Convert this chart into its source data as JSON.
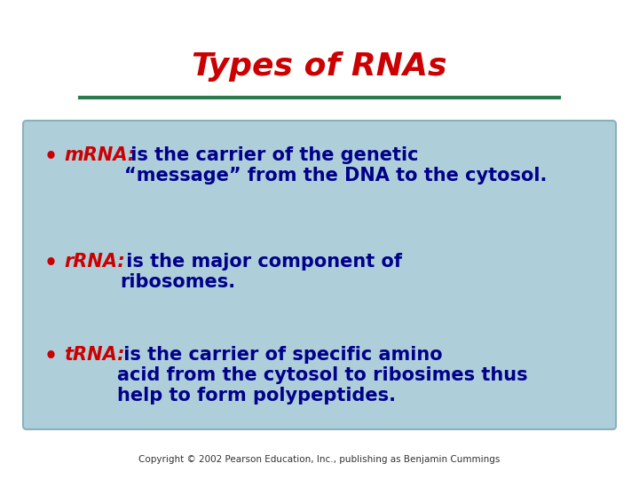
{
  "title": "Types of RNAs",
  "title_color": "#cc0000",
  "title_fontsize": 26,
  "bg_color": "#ffffff",
  "box_facecolor": "#aecfda",
  "box_edgecolor": "#8ab0be",
  "green_line_color": "#2d7a4f",
  "copyright": "Copyright © 2002 Pearson Education, Inc., publishing as Benjamin Cummings",
  "bullet_dot_color": "#cc0000",
  "bullet1_label": "mRNA:",
  "bullet1_label_color": "#cc0000",
  "bullet1_text": " is the carrier of the genetic\n“message” from the DNA to the cytosol.",
  "bullet1_text_color": "#00008b",
  "bullet2_label": "rRNA:",
  "bullet2_label_color": "#cc0000",
  "bullet2_text": " is the major component of\nribosomes.",
  "bullet2_text_color": "#00008b",
  "bullet3_label": "tRNA:",
  "bullet3_label_color": "#cc0000",
  "bullet3_text": " is the carrier of specific amino\nacid from the cytosol to ribosimes thus\nhelp to form polypeptides.",
  "bullet3_text_color": "#00008b",
  "text_fontsize": 15,
  "label_fontsize": 15
}
